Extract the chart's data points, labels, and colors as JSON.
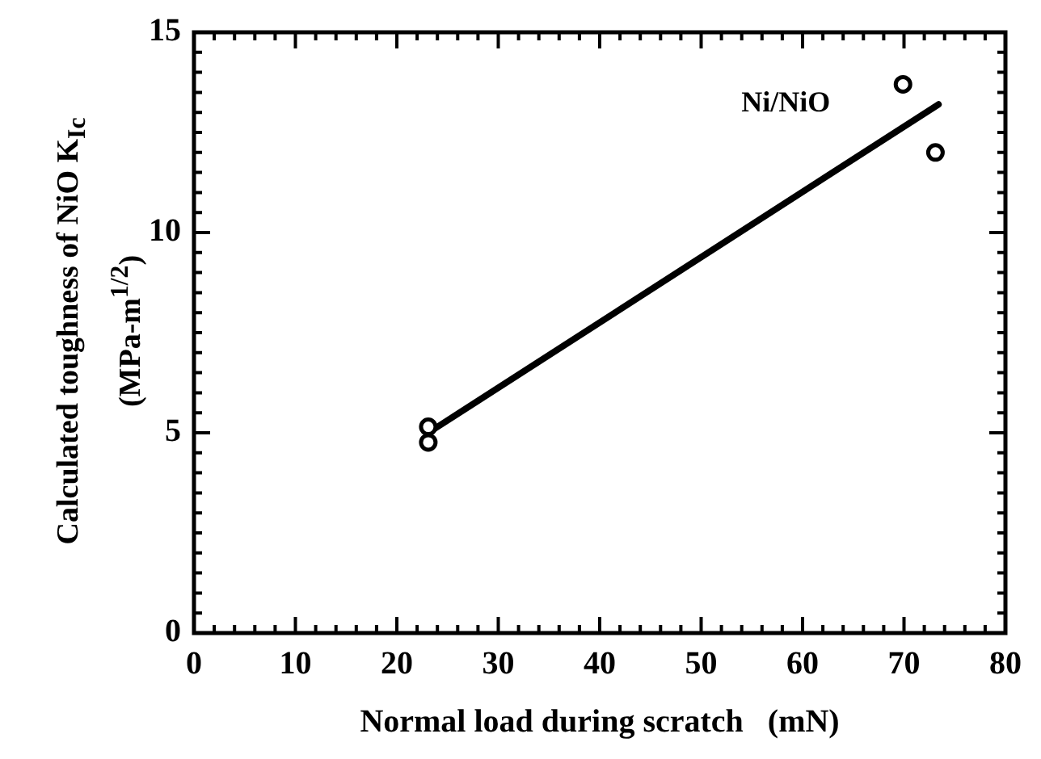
{
  "chart_data": {
    "type": "scatter",
    "xlabel": "Normal load during scratch   (mN)",
    "ylabel": "Calculated toughness of NiO K$_{Ic}$ (MPa-m$^{1/2}$)",
    "series": [
      {
        "name": "Ni/NiO",
        "marker": "circle",
        "color": "#000000",
        "x": [
          23.1,
          23.1,
          69.9,
          73.1
        ],
        "values": [
          5.15,
          4.76,
          13.7,
          12.0
        ]
      },
      {
        "type": "line",
        "line_style": "solid",
        "color": "#000000",
        "x": [
          23.1,
          73.4
        ],
        "values": [
          5.0,
          13.2
        ]
      }
    ],
    "xlim": [
      0,
      80
    ],
    "ylim": [
      0,
      15
    ],
    "xticks": [
      0,
      {
        "value": 2,
        "label": null
      },
      {
        "value": 4,
        "label": null
      },
      {
        "value": 6,
        "label": null
      },
      {
        "value": 8,
        "label": null
      },
      10,
      {
        "value": 12,
        "label": null
      },
      {
        "value": 14,
        "label": null
      },
      {
        "value": 16,
        "label": null
      },
      {
        "value": 18,
        "label": null
      },
      20,
      {
        "value": 22,
        "label": null
      },
      {
        "value": 24,
        "label": null
      },
      {
        "value": 26,
        "label": null
      },
      {
        "value": 28,
        "label": null
      },
      30,
      {
        "value": 32,
        "label": null
      },
      {
        "value": 34,
        "label": null
      },
      {
        "value": 36,
        "label": null
      },
      {
        "value": 38,
        "label": null
      },
      40,
      {
        "value": 42,
        "label": null
      },
      {
        "value": 44,
        "label": null
      },
      {
        "value": 46,
        "label": null
      },
      {
        "value": 48,
        "label": null
      },
      50,
      {
        "value": 52,
        "label": null
      },
      {
        "value": 54,
        "label": null
      },
      {
        "value": 56,
        "label": null
      },
      {
        "value": 58,
        "label": null
      },
      60,
      {
        "value": 62,
        "label": null
      },
      {
        "value": 64,
        "label": null
      },
      {
        "value": 66,
        "label": null
      },
      {
        "value": 68,
        "label": null
      },
      70,
      {
        "value": 72,
        "label": null
      },
      {
        "value": 74,
        "label": null
      },
      {
        "value": 76,
        "label": null
      },
      {
        "value": 78,
        "label": null
      },
      80
    ],
    "yticks": [
      0,
      {
        "value": 0.5,
        "label": null
      },
      {
        "value": 1,
        "label": null
      },
      {
        "value": 1.5,
        "label": null
      },
      {
        "value": 2,
        "label": null
      },
      {
        "value": 2.5,
        "label": null
      },
      {
        "value": 3,
        "label": null
      },
      {
        "value": 3.5,
        "label": null
      },
      {
        "value": 4,
        "label": null
      },
      {
        "value": 4.5,
        "label": null
      },
      5,
      {
        "value": 5.5,
        "label": null
      },
      {
        "value": 6,
        "label": null
      },
      {
        "value": 6.5,
        "label": null
      },
      {
        "value": 7,
        "label": null
      },
      {
        "value": 7.5,
        "label": null
      },
      {
        "value": 8,
        "label": null
      },
      {
        "value": 8.5,
        "label": null
      },
      {
        "value": 9,
        "label": null
      },
      {
        "value": 9.5,
        "label": null
      },
      10,
      {
        "value": 10.5,
        "label": null
      },
      {
        "value": 11,
        "label": null
      },
      {
        "value": 11.5,
        "label": null
      },
      {
        "value": 12,
        "label": null
      },
      {
        "value": 12.5,
        "label": null
      },
      {
        "value": 13,
        "label": null
      },
      {
        "value": 13.5,
        "label": null
      },
      {
        "value": 14,
        "label": null
      },
      {
        "value": 14.5,
        "label": null
      },
      15
    ],
    "grid": false,
    "legend": false
  }
}
